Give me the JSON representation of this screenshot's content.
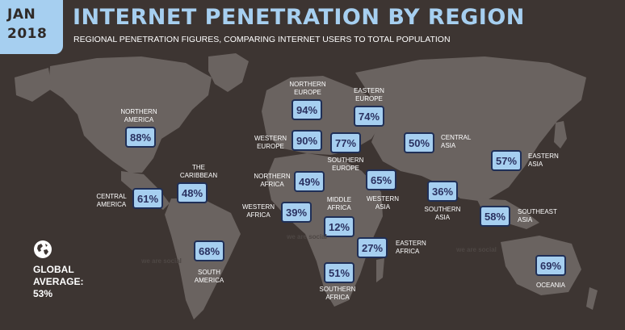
{
  "header": {
    "date_month": "JAN",
    "date_year": "2018",
    "title": "INTERNET PENETRATION BY REGION",
    "subtitle": "REGIONAL PENETRATION FIGURES, COMPARING INTERNET USERS TO TOTAL POPULATION"
  },
  "global": {
    "label_line1": "GLOBAL",
    "label_line2": "AVERAGE:",
    "value": "53%",
    "icon": "globe-icon"
  },
  "watermarks": [
    "we are social",
    "we are social",
    "we are social"
  ],
  "colors": {
    "background": "#3d3532",
    "landmass": "#6a6360",
    "accent": "#a6cff0",
    "box_border": "#1f2f57",
    "box_text": "#2a3160",
    "label_text": "#ffffff"
  },
  "chart_data": {
    "type": "map",
    "title": "INTERNET PENETRATION BY REGION",
    "subtitle": "REGIONAL PENETRATION FIGURES, COMPARING INTERNET USERS TO TOTAL POPULATION",
    "unit": "%",
    "global_average": 53,
    "regions": [
      {
        "name_lines": [
          "NORTHERN",
          "AMERICA"
        ],
        "value": 88
      },
      {
        "name_lines": [
          "THE",
          "CARIBBEAN"
        ],
        "value": 48
      },
      {
        "name_lines": [
          "CENTRAL",
          "AMERICA"
        ],
        "value": 61
      },
      {
        "name_lines": [
          "SOUTH",
          "AMERICA"
        ],
        "value": 68
      },
      {
        "name_lines": [
          "NORTHERN",
          "EUROPE"
        ],
        "value": 94
      },
      {
        "name_lines": [
          "EASTERN",
          "EUROPE"
        ],
        "value": 74
      },
      {
        "name_lines": [
          "WESTERN",
          "EUROPE"
        ],
        "value": 90
      },
      {
        "name_lines": [
          "SOUTHERN",
          "EUROPE"
        ],
        "value": 77
      },
      {
        "name_lines": [
          "NORTHERN",
          "AFRICA"
        ],
        "value": 49
      },
      {
        "name_lines": [
          "WESTERN",
          "AFRICA"
        ],
        "value": 39
      },
      {
        "name_lines": [
          "MIDDLE",
          "AFRICA"
        ],
        "value": 12
      },
      {
        "name_lines": [
          "EASTERN",
          "AFRICA"
        ],
        "value": 27
      },
      {
        "name_lines": [
          "SOUTHERN",
          "AFRICA"
        ],
        "value": 51
      },
      {
        "name_lines": [
          "WESTERN",
          "ASIA"
        ],
        "value": 65
      },
      {
        "name_lines": [
          "CENTRAL",
          "ASIA"
        ],
        "value": 50
      },
      {
        "name_lines": [
          "SOUTHERN",
          "ASIA"
        ],
        "value": 36
      },
      {
        "name_lines": [
          "EASTERN",
          "ASIA"
        ],
        "value": 57
      },
      {
        "name_lines": [
          "SOUTHEAST",
          "ASIA"
        ],
        "value": 58
      },
      {
        "name_lines": [
          "OCEANIA"
        ],
        "value": 69
      }
    ]
  }
}
